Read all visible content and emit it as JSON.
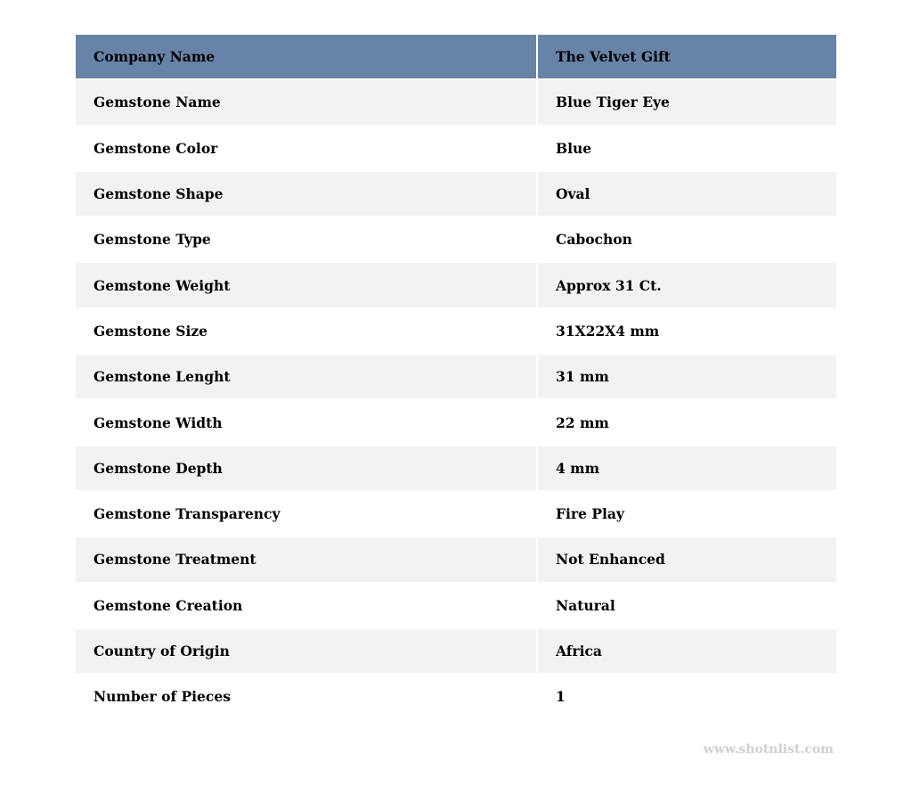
{
  "colors": {
    "header_bg": "#6783a8",
    "stripe_bg": "#f2f2f2"
  },
  "rows": [
    [
      "Company Name",
      "The Velvet Gift"
    ],
    [
      "Gemstone Name",
      "Blue Tiger Eye"
    ],
    [
      "Gemstone Color",
      "Blue"
    ],
    [
      "Gemstone Shape",
      "Oval"
    ],
    [
      "Gemstone Type",
      "Cabochon"
    ],
    [
      "Gemstone Weight",
      "Approx 31 Ct."
    ],
    [
      "Gemstone Size",
      "31X22X4 mm"
    ],
    [
      "Gemstone Lenght",
      "31 mm"
    ],
    [
      "Gemstone Width",
      "22 mm"
    ],
    [
      "Gemstone Depth",
      "4 mm"
    ],
    [
      "Gemstone Transparency",
      "Fire Play"
    ],
    [
      "Gemstone Treatment",
      "Not Enhanced"
    ],
    [
      "Gemstone Creation",
      "Natural"
    ],
    [
      "Country of Origin",
      "Africa"
    ],
    [
      "Number of Pieces",
      "1"
    ]
  ],
  "watermark": "www.shotnlist.com"
}
